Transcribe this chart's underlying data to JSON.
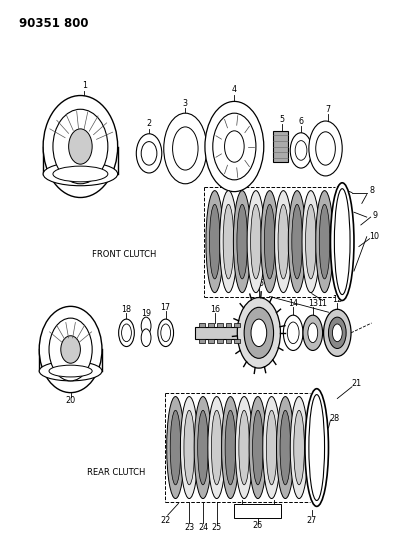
{
  "title": "90351 800",
  "bg_color": "#ffffff",
  "line_color": "#000000",
  "fig_width": 4.03,
  "fig_height": 5.33,
  "dpi": 100,
  "front_clutch_label": "FRONT CLUTCH",
  "rear_clutch_label": "REAR CLUTCH"
}
